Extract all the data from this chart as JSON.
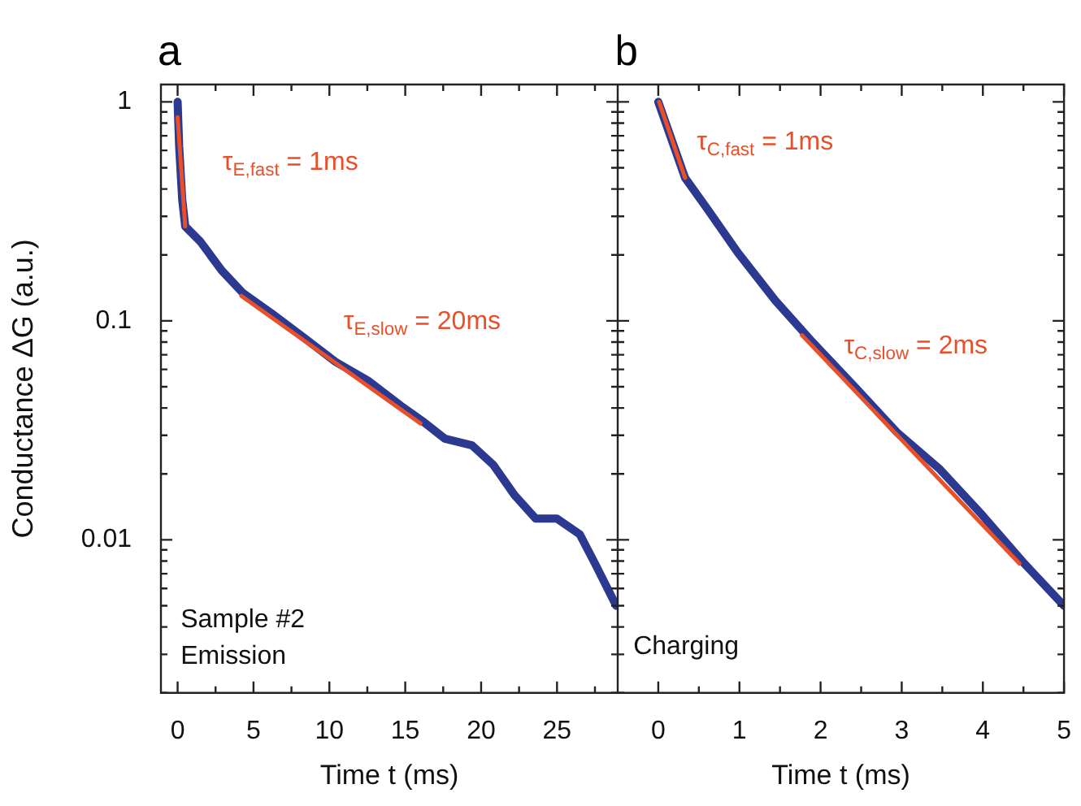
{
  "chart_data": [
    {
      "type": "line",
      "title": "a",
      "xlabel": "Time t (ms)",
      "ylabel": "Conductance ΔG (a.u.)",
      "log": "y",
      "xlim": [
        -1.1,
        29
      ],
      "xticks": [
        0,
        {
          "value": 2.5,
          "label": null
        },
        5,
        {
          "value": 7.5,
          "label": null
        },
        10,
        {
          "value": 12.5,
          "label": null
        },
        15,
        {
          "value": 17.5,
          "label": null
        },
        20,
        {
          "value": 22.5,
          "label": null
        },
        25,
        {
          "value": 27.5,
          "label": null
        }
      ],
      "ylim": [
        0.002,
        1.2
      ],
      "yticks": [
        {
          "value": 0.002,
          "label": null
        },
        {
          "value": 0.003,
          "label": null
        },
        {
          "value": 0.004,
          "label": null
        },
        {
          "value": 0.005,
          "label": null
        },
        {
          "value": 0.006,
          "label": null
        },
        {
          "value": 0.007,
          "label": null
        },
        {
          "value": 0.008,
          "label": null
        },
        {
          "value": 0.009,
          "label": null
        },
        0.01,
        {
          "value": 0.02,
          "label": null
        },
        {
          "value": 0.03,
          "label": null
        },
        {
          "value": 0.04,
          "label": null
        },
        {
          "value": 0.05,
          "label": null
        },
        {
          "value": 0.06,
          "label": null
        },
        {
          "value": 0.07,
          "label": null
        },
        {
          "value": 0.08,
          "label": null
        },
        {
          "value": 0.09,
          "label": null
        },
        0.1,
        {
          "value": 0.2,
          "label": null
        },
        {
          "value": 0.3,
          "label": null
        },
        {
          "value": 0.4,
          "label": null
        },
        {
          "value": 0.5,
          "label": null
        },
        {
          "value": 0.6,
          "label": null
        },
        {
          "value": 0.7,
          "label": null
        },
        {
          "value": 0.8,
          "label": null
        },
        {
          "value": 0.9,
          "label": null
        },
        1
      ],
      "series": [
        {
          "color": "#2b3990",
          "x": [
            0,
            0.1,
            0.3,
            0.5,
            1.5,
            2.9,
            4.3,
            6.2,
            8.3,
            10.4,
            12.6,
            14.7,
            16.1,
            17.6,
            19.4,
            20.8,
            22.2,
            23.6,
            25.0,
            26.5,
            27.5,
            28.9
          ],
          "values": [
            1.0,
            0.63,
            0.36,
            0.27,
            0.23,
            0.17,
            0.134,
            0.108,
            0.084,
            0.065,
            0.053,
            0.041,
            0.035,
            0.029,
            0.027,
            0.022,
            0.016,
            0.0125,
            0.0125,
            0.0106,
            0.0078,
            0.005
          ]
        },
        {
          "color": "#e8502a",
          "x": [
            0,
            0.5
          ],
          "values": [
            0.85,
            0.27
          ]
        },
        {
          "color": "#e8502a",
          "x": [
            4.2,
            16.0
          ],
          "values": [
            0.13,
            0.034
          ]
        }
      ],
      "annotations": [
        "τ$_{E,fast}$ = 1ms",
        "τ$_{E,slow}$ = 20ms",
        "Sample #2",
        "Emission"
      ]
    },
    {
      "type": "line",
      "title": "b",
      "xlabel": "Time t (ms)",
      "log": "y",
      "tick_labels": "x",
      "xlim": [
        -0.5,
        5
      ],
      "xticks": [
        0,
        {
          "value": 0.5,
          "label": null
        },
        1,
        {
          "value": 1.5,
          "label": null
        },
        2,
        {
          "value": 2.5,
          "label": null
        },
        3,
        {
          "value": 3.5,
          "label": null
        },
        4,
        {
          "value": 4.5,
          "label": null
        },
        5
      ],
      "ylim": [
        0.002,
        1.2
      ],
      "yticks": [
        {
          "value": 0.002,
          "label": null
        },
        {
          "value": 0.003,
          "label": null
        },
        {
          "value": 0.004,
          "label": null
        },
        {
          "value": 0.005,
          "label": null
        },
        {
          "value": 0.006,
          "label": null
        },
        {
          "value": 0.007,
          "label": null
        },
        {
          "value": 0.008,
          "label": null
        },
        {
          "value": 0.009,
          "label": null
        },
        {
          "value": 0.01,
          "label": null
        },
        {
          "value": 0.02,
          "label": null
        },
        {
          "value": 0.03,
          "label": null
        },
        {
          "value": 0.04,
          "label": null
        },
        {
          "value": 0.05,
          "label": null
        },
        {
          "value": 0.06,
          "label": null
        },
        {
          "value": 0.07,
          "label": null
        },
        {
          "value": 0.08,
          "label": null
        },
        {
          "value": 0.09,
          "label": null
        },
        {
          "value": 0.1,
          "label": null
        },
        {
          "value": 0.2,
          "label": null
        },
        {
          "value": 0.3,
          "label": null
        },
        {
          "value": 0.4,
          "label": null
        },
        {
          "value": 0.5,
          "label": null
        },
        {
          "value": 0.6,
          "label": null
        },
        {
          "value": 0.7,
          "label": null
        },
        {
          "value": 0.8,
          "label": null
        },
        {
          "value": 0.9,
          "label": null
        },
        {
          "value": 1,
          "label": null
        }
      ],
      "series": [
        {
          "color": "#2b3990",
          "x": [
            0,
            0.33,
            0.59,
            0.98,
            1.44,
            1.9,
            2.42,
            2.94,
            3.47,
            3.99,
            4.51,
            5.0
          ],
          "values": [
            1.0,
            0.45,
            0.33,
            0.205,
            0.124,
            0.08,
            0.05,
            0.031,
            0.021,
            0.013,
            0.0078,
            0.005
          ]
        },
        {
          "color": "#e8502a",
          "x": [
            0.01,
            0.33
          ],
          "values": [
            1.0,
            0.45
          ]
        },
        {
          "color": "#e8502a",
          "x": [
            1.77,
            4.45
          ],
          "values": [
            0.086,
            0.0078
          ]
        }
      ],
      "annotations": [
        "τ$_{C,fast}$ = 1ms",
        "τ$_{C,slow}$ = 2ms",
        "Charging"
      ]
    }
  ]
}
